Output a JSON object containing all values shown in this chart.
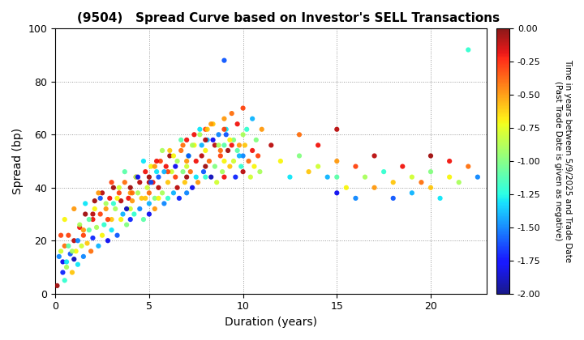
{
  "title": "(9504)   Spread Curve based on Investor's SELL Transactions",
  "xlabel": "Duration (years)",
  "ylabel": "Spread (bp)",
  "xlim": [
    0,
    23
  ],
  "ylim": [
    0,
    100
  ],
  "xticks": [
    0,
    5,
    10,
    15,
    20
  ],
  "yticks": [
    0,
    20,
    40,
    60,
    80,
    100
  ],
  "colorbar_label_line1": "Time in years between 5/9/2025 and Trade Date",
  "colorbar_label_line2": "(Past Trade Date is given as negative)",
  "vmin": -2.0,
  "vmax": 0.0,
  "colorbar_ticks": [
    0.0,
    -0.25,
    -0.5,
    -0.75,
    -1.0,
    -1.25,
    -1.5,
    -1.75,
    -2.0
  ],
  "background_color": "#ffffff",
  "marker_size": 20,
  "points": [
    [
      0.1,
      3.0,
      -0.05
    ],
    [
      0.2,
      14.0,
      -1.5
    ],
    [
      0.3,
      16.0,
      -0.8
    ],
    [
      0.4,
      12.0,
      -1.8
    ],
    [
      0.5,
      18.0,
      -0.4
    ],
    [
      0.5,
      5.0,
      -1.2
    ],
    [
      0.6,
      10.0,
      -0.9
    ],
    [
      0.7,
      22.0,
      -0.3
    ],
    [
      0.8,
      15.0,
      -1.6
    ],
    [
      0.9,
      8.0,
      -0.6
    ],
    [
      1.0,
      20.0,
      -0.1
    ],
    [
      1.0,
      13.0,
      -1.9
    ],
    [
      1.1,
      16.0,
      -0.7
    ],
    [
      1.2,
      11.0,
      -1.3
    ],
    [
      1.3,
      25.0,
      -0.2
    ],
    [
      1.4,
      18.0,
      -0.8
    ],
    [
      1.5,
      14.0,
      -1.5
    ],
    [
      1.5,
      22.0,
      -0.3
    ],
    [
      1.6,
      30.0,
      -0.05
    ],
    [
      1.7,
      19.0,
      -0.6
    ],
    [
      1.8,
      24.0,
      -1.1
    ],
    [
      1.9,
      16.0,
      -0.4
    ],
    [
      2.0,
      28.0,
      -0.2
    ],
    [
      2.0,
      21.0,
      -1.7
    ],
    [
      2.1,
      35.0,
      -0.05
    ],
    [
      2.2,
      25.0,
      -0.9
    ],
    [
      2.3,
      18.0,
      -1.4
    ],
    [
      2.4,
      30.0,
      -0.3
    ],
    [
      2.5,
      22.0,
      -0.7
    ],
    [
      2.5,
      38.0,
      -0.1
    ],
    [
      2.6,
      26.0,
      -1.2
    ],
    [
      2.7,
      32.0,
      -0.5
    ],
    [
      2.8,
      20.0,
      -1.8
    ],
    [
      2.9,
      36.0,
      -0.2
    ],
    [
      3.0,
      28.0,
      -0.6
    ],
    [
      3.0,
      24.0,
      -1.3
    ],
    [
      3.1,
      40.0,
      -0.05
    ],
    [
      3.2,
      32.0,
      -0.9
    ],
    [
      3.3,
      22.0,
      -1.6
    ],
    [
      3.4,
      38.0,
      -0.3
    ],
    [
      3.5,
      28.0,
      -0.7
    ],
    [
      3.5,
      35.0,
      -0.1
    ],
    [
      3.6,
      30.0,
      -1.4
    ],
    [
      3.7,
      42.0,
      -0.4
    ],
    [
      3.8,
      26.0,
      -1.0
    ],
    [
      3.9,
      36.0,
      -0.2
    ],
    [
      4.0,
      32.0,
      -0.8
    ],
    [
      4.0,
      28.0,
      -1.7
    ],
    [
      4.0,
      40.0,
      -0.05
    ],
    [
      4.1,
      35.0,
      -0.5
    ],
    [
      4.2,
      30.0,
      -1.2
    ],
    [
      4.3,
      44.0,
      -0.3
    ],
    [
      4.4,
      38.0,
      -0.9
    ],
    [
      4.5,
      32.0,
      -1.5
    ],
    [
      4.5,
      42.0,
      -0.1
    ],
    [
      4.6,
      36.0,
      -0.6
    ],
    [
      4.7,
      28.0,
      -1.1
    ],
    [
      4.8,
      46.0,
      -0.2
    ],
    [
      4.9,
      40.0,
      -0.8
    ],
    [
      5.0,
      34.0,
      -1.4
    ],
    [
      5.0,
      44.0,
      -0.05
    ],
    [
      5.0,
      38.0,
      -0.4
    ],
    [
      5.0,
      30.0,
      -1.8
    ],
    [
      5.1,
      48.0,
      -0.7
    ],
    [
      5.2,
      42.0,
      -0.2
    ],
    [
      5.3,
      36.0,
      -1.0
    ],
    [
      5.3,
      32.0,
      -0.5
    ],
    [
      5.4,
      46.0,
      -1.3
    ],
    [
      5.5,
      40.0,
      -0.1
    ],
    [
      5.5,
      36.0,
      -0.7
    ],
    [
      5.5,
      44.0,
      -1.6
    ],
    [
      5.6,
      50.0,
      -0.3
    ],
    [
      5.7,
      38.0,
      -0.9
    ],
    [
      5.8,
      34.0,
      -1.5
    ],
    [
      5.9,
      48.0,
      -0.2
    ],
    [
      6.0,
      42.0,
      -0.6
    ],
    [
      6.0,
      36.0,
      -1.2
    ],
    [
      6.1,
      52.0,
      -0.05
    ],
    [
      6.2,
      46.0,
      -0.8
    ],
    [
      6.3,
      38.0,
      -1.4
    ],
    [
      6.4,
      44.0,
      -0.3
    ],
    [
      6.5,
      50.0,
      -0.9
    ],
    [
      6.5,
      40.0,
      -0.1
    ],
    [
      6.6,
      36.0,
      -1.7
    ],
    [
      6.7,
      54.0,
      -0.4
    ],
    [
      6.8,
      46.0,
      -1.0
    ],
    [
      6.9,
      42.0,
      -0.6
    ],
    [
      7.0,
      58.0,
      -0.2
    ],
    [
      7.0,
      48.0,
      -0.8
    ],
    [
      7.0,
      38.0,
      -1.5
    ],
    [
      7.0,
      44.0,
      -0.05
    ],
    [
      7.1,
      52.0,
      -1.1
    ],
    [
      7.2,
      46.0,
      -0.4
    ],
    [
      7.3,
      40.0,
      -1.8
    ],
    [
      7.4,
      56.0,
      -0.7
    ],
    [
      7.5,
      50.0,
      -0.2
    ],
    [
      7.5,
      44.0,
      -1.3
    ],
    [
      7.6,
      42.0,
      -0.5
    ],
    [
      7.7,
      60.0,
      -0.9
    ],
    [
      7.8,
      52.0,
      -0.1
    ],
    [
      7.9,
      46.0,
      -1.6
    ],
    [
      8.0,
      62.0,
      -0.3
    ],
    [
      8.0,
      54.0,
      -0.7
    ],
    [
      8.0,
      44.0,
      -1.2
    ],
    [
      8.0,
      48.0,
      -0.05
    ],
    [
      8.1,
      58.0,
      -1.4
    ],
    [
      8.2,
      50.0,
      -0.4
    ],
    [
      8.3,
      44.0,
      -1.9
    ],
    [
      8.4,
      64.0,
      -0.6
    ],
    [
      8.5,
      56.0,
      -0.1
    ],
    [
      8.5,
      48.0,
      -1.0
    ],
    [
      8.6,
      42.0,
      -0.8
    ],
    [
      8.7,
      60.0,
      -1.5
    ],
    [
      8.8,
      52.0,
      -0.3
    ],
    [
      8.9,
      46.0,
      -0.9
    ],
    [
      9.0,
      66.0,
      -0.5
    ],
    [
      9.0,
      56.0,
      -1.1
    ],
    [
      9.0,
      88.0,
      -1.6
    ],
    [
      9.0,
      44.0,
      -0.2
    ],
    [
      9.0,
      50.0,
      -0.7
    ],
    [
      9.1,
      62.0,
      -1.3
    ],
    [
      9.2,
      54.0,
      -0.05
    ],
    [
      9.3,
      48.0,
      -0.6
    ],
    [
      9.4,
      68.0,
      -0.4
    ],
    [
      9.5,
      58.0,
      -1.0
    ],
    [
      9.5,
      50.0,
      -0.8
    ],
    [
      9.6,
      44.0,
      -1.7
    ],
    [
      9.7,
      64.0,
      -0.2
    ],
    [
      9.8,
      56.0,
      -0.5
    ],
    [
      9.9,
      48.0,
      -1.2
    ],
    [
      10.0,
      70.0,
      -0.3
    ],
    [
      10.0,
      60.0,
      -0.9
    ],
    [
      10.0,
      52.0,
      -1.5
    ],
    [
      10.0,
      46.0,
      -0.1
    ],
    [
      10.1,
      56.0,
      -0.6
    ],
    [
      10.2,
      62.0,
      -1.2
    ],
    [
      10.3,
      50.0,
      -0.4
    ],
    [
      10.4,
      44.0,
      -0.8
    ],
    [
      10.5,
      66.0,
      -1.4
    ],
    [
      10.5,
      54.0,
      -0.2
    ],
    [
      10.6,
      48.0,
      -0.7
    ],
    [
      10.7,
      58.0,
      -1.0
    ],
    [
      10.8,
      52.0,
      -0.3
    ],
    [
      10.9,
      46.0,
      -0.9
    ],
    [
      11.0,
      62.0,
      -0.5
    ],
    [
      11.5,
      56.0,
      -0.1
    ],
    [
      12.0,
      50.0,
      -0.7
    ],
    [
      12.5,
      44.0,
      -1.3
    ],
    [
      13.0,
      60.0,
      -0.4
    ],
    [
      13.0,
      52.0,
      -1.0
    ],
    [
      13.5,
      46.0,
      -0.6
    ],
    [
      14.0,
      56.0,
      -0.2
    ],
    [
      14.0,
      48.0,
      -0.8
    ],
    [
      14.5,
      44.0,
      -1.4
    ],
    [
      15.0,
      38.0,
      -1.8
    ],
    [
      15.0,
      50.0,
      -0.5
    ],
    [
      15.0,
      62.0,
      -0.1
    ],
    [
      15.0,
      44.0,
      -1.1
    ],
    [
      15.5,
      40.0,
      -0.7
    ],
    [
      16.0,
      36.0,
      -1.5
    ],
    [
      16.0,
      48.0,
      -0.3
    ],
    [
      16.5,
      44.0,
      -0.9
    ],
    [
      17.0,
      40.0,
      -0.5
    ],
    [
      17.0,
      52.0,
      -0.1
    ],
    [
      17.5,
      46.0,
      -1.2
    ],
    [
      18.0,
      42.0,
      -0.6
    ],
    [
      18.0,
      36.0,
      -1.6
    ],
    [
      18.5,
      48.0,
      -0.2
    ],
    [
      19.0,
      44.0,
      -0.8
    ],
    [
      19.0,
      38.0,
      -1.4
    ],
    [
      19.5,
      42.0,
      -0.4
    ],
    [
      20.0,
      46.0,
      -1.0
    ],
    [
      20.0,
      52.0,
      -0.05
    ],
    [
      20.0,
      40.0,
      -0.6
    ],
    [
      20.5,
      36.0,
      -1.3
    ],
    [
      21.0,
      44.0,
      -0.7
    ],
    [
      21.0,
      50.0,
      -0.2
    ],
    [
      21.5,
      42.0,
      -0.9
    ],
    [
      22.0,
      48.0,
      -0.4
    ],
    [
      22.0,
      92.0,
      -1.2
    ],
    [
      22.5,
      44.0,
      -1.5
    ],
    [
      0.3,
      22.0,
      -0.3
    ],
    [
      0.5,
      28.0,
      -0.7
    ],
    [
      0.7,
      18.0,
      -1.1
    ],
    [
      1.0,
      32.0,
      -0.5
    ],
    [
      1.3,
      26.0,
      -0.9
    ],
    [
      1.6,
      34.0,
      -1.3
    ],
    [
      2.0,
      30.0,
      -0.1
    ],
    [
      2.3,
      38.0,
      -0.5
    ],
    [
      2.7,
      34.0,
      -0.9
    ],
    [
      3.0,
      42.0,
      -0.3
    ],
    [
      3.3,
      36.0,
      -0.7
    ],
    [
      3.7,
      46.0,
      -1.1
    ],
    [
      4.0,
      38.0,
      -0.5
    ],
    [
      4.3,
      44.0,
      -0.9
    ],
    [
      4.7,
      50.0,
      -1.3
    ],
    [
      5.0,
      42.0,
      -0.1
    ],
    [
      5.3,
      48.0,
      -0.5
    ],
    [
      5.7,
      54.0,
      -0.9
    ],
    [
      6.0,
      46.0,
      -0.3
    ],
    [
      6.3,
      52.0,
      -0.7
    ],
    [
      6.7,
      58.0,
      -1.1
    ],
    [
      7.0,
      50.0,
      -0.5
    ],
    [
      7.3,
      56.0,
      -0.9
    ],
    [
      7.7,
      62.0,
      -1.3
    ],
    [
      8.0,
      58.0,
      -0.1
    ],
    [
      8.3,
      64.0,
      -0.5
    ],
    [
      8.7,
      56.0,
      -0.9
    ],
    [
      9.0,
      62.0,
      -0.3
    ],
    [
      9.3,
      58.0,
      -0.7
    ],
    [
      9.7,
      54.0,
      -1.1
    ],
    [
      0.4,
      8.0,
      -1.7
    ],
    [
      0.6,
      12.0,
      -1.3
    ],
    [
      0.9,
      16.0,
      -0.9
    ],
    [
      1.2,
      20.0,
      -1.5
    ],
    [
      1.5,
      24.0,
      -0.5
    ],
    [
      1.8,
      28.0,
      -1.1
    ],
    [
      2.1,
      32.0,
      -0.7
    ],
    [
      2.4,
      36.0,
      -1.6
    ],
    [
      2.8,
      28.0,
      -0.3
    ],
    [
      3.1,
      34.0,
      -1.2
    ],
    [
      3.4,
      40.0,
      -0.8
    ],
    [
      3.8,
      32.0,
      -1.9
    ],
    [
      4.1,
      38.0,
      -0.4
    ],
    [
      4.4,
      44.0,
      -1.8
    ],
    [
      4.8,
      36.0,
      -0.6
    ],
    [
      5.1,
      42.0,
      -1.6
    ],
    [
      5.4,
      50.0,
      -0.2
    ],
    [
      5.8,
      46.0,
      -1.4
    ],
    [
      6.1,
      54.0,
      -0.6
    ],
    [
      6.4,
      48.0,
      -1.8
    ],
    [
      6.8,
      56.0,
      -0.4
    ],
    [
      7.1,
      52.0,
      -1.6
    ],
    [
      7.4,
      60.0,
      -0.2
    ],
    [
      7.8,
      56.0,
      -1.4
    ],
    [
      8.1,
      62.0,
      -0.6
    ],
    [
      8.4,
      58.0,
      -1.8
    ],
    [
      8.8,
      54.0,
      -0.4
    ],
    [
      9.1,
      60.0,
      -1.6
    ],
    [
      9.4,
      56.0,
      -0.2
    ],
    [
      9.8,
      52.0,
      -1.4
    ]
  ]
}
